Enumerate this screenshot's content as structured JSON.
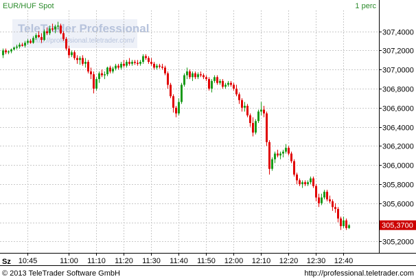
{
  "header": {
    "instrument": "EUR/HUF Spot",
    "interval": "1 perc"
  },
  "watermark": {
    "brand": "TeleTrader Professional",
    "url": "http://professional.teletrader.com/"
  },
  "footer": {
    "copyright": "© 2013 TeleTrader Software GmbH",
    "url": "http://professional.teletrader.com"
  },
  "axis_corner_label": "Sz",
  "last_price_label": "305,3700",
  "colors": {
    "up": "#1a9a1a",
    "down": "#e00000",
    "grid": "#c8c8c8",
    "last_price_bg": "#cc0000",
    "header_text": "#2a8a2a"
  },
  "chart_data": {
    "type": "candlestick",
    "title": "EUR/HUF Spot",
    "interval": "1 perc",
    "ylim": [
      305.08,
      307.62
    ],
    "yticks": [
      305.2,
      305.4,
      305.6,
      305.8,
      306.0,
      306.2,
      306.4,
      306.6,
      306.8,
      307.0,
      307.2,
      307.4
    ],
    "ytick_labels": [
      "305,2000",
      "305,4000",
      "305,6000",
      "305,8000",
      "306,0000",
      "306,2000",
      "306,4000",
      "306,6000",
      "306,8000",
      "307,0000",
      "307,2000",
      "307,4000"
    ],
    "xlim": [
      "10:36",
      "12:52"
    ],
    "xticks": [
      "10:45",
      "11:00",
      "11:10",
      "11:20",
      "11:30",
      "11:40",
      "11:50",
      "12:00",
      "12:10",
      "12:20",
      "12:30",
      "12:40"
    ],
    "grid": true,
    "last_price": 305.37,
    "candles": [
      {
        "t": "10:36",
        "o": 307.15,
        "h": 307.22,
        "l": 307.12,
        "c": 307.2
      },
      {
        "t": "10:37",
        "o": 307.2,
        "h": 307.22,
        "l": 307.16,
        "c": 307.18
      },
      {
        "t": "10:38",
        "o": 307.18,
        "h": 307.2,
        "l": 307.16,
        "c": 307.19
      },
      {
        "t": "10:39",
        "o": 307.19,
        "h": 307.22,
        "l": 307.17,
        "c": 307.21
      },
      {
        "t": "10:40",
        "o": 307.21,
        "h": 307.24,
        "l": 307.2,
        "c": 307.23
      },
      {
        "t": "10:41",
        "o": 307.23,
        "h": 307.26,
        "l": 307.21,
        "c": 307.24
      },
      {
        "t": "10:42",
        "o": 307.24,
        "h": 307.28,
        "l": 307.22,
        "c": 307.26
      },
      {
        "t": "10:43",
        "o": 307.26,
        "h": 307.28,
        "l": 307.24,
        "c": 307.25
      },
      {
        "t": "10:44",
        "o": 307.25,
        "h": 307.3,
        "l": 307.23,
        "c": 307.28
      },
      {
        "t": "10:45",
        "o": 307.28,
        "h": 307.32,
        "l": 307.26,
        "c": 307.3
      },
      {
        "t": "10:46",
        "o": 307.3,
        "h": 307.32,
        "l": 307.27,
        "c": 307.28
      },
      {
        "t": "10:47",
        "o": 307.28,
        "h": 307.35,
        "l": 307.27,
        "c": 307.33
      },
      {
        "t": "10:48",
        "o": 307.33,
        "h": 307.38,
        "l": 307.31,
        "c": 307.36
      },
      {
        "t": "10:49",
        "o": 307.36,
        "h": 307.4,
        "l": 307.33,
        "c": 307.34
      },
      {
        "t": "10:50",
        "o": 307.34,
        "h": 307.38,
        "l": 307.28,
        "c": 307.31
      },
      {
        "t": "10:51",
        "o": 307.31,
        "h": 307.42,
        "l": 307.3,
        "c": 307.4
      },
      {
        "t": "10:52",
        "o": 307.4,
        "h": 307.44,
        "l": 307.36,
        "c": 307.38
      },
      {
        "t": "10:53",
        "o": 307.38,
        "h": 307.46,
        "l": 307.36,
        "c": 307.43
      },
      {
        "t": "10:54",
        "o": 307.43,
        "h": 307.48,
        "l": 307.4,
        "c": 307.42
      },
      {
        "t": "10:55",
        "o": 307.42,
        "h": 307.47,
        "l": 307.38,
        "c": 307.45
      },
      {
        "t": "10:56",
        "o": 307.45,
        "h": 307.5,
        "l": 307.42,
        "c": 307.46
      },
      {
        "t": "10:57",
        "o": 307.46,
        "h": 307.48,
        "l": 307.37,
        "c": 307.38
      },
      {
        "t": "10:58",
        "o": 307.38,
        "h": 307.4,
        "l": 307.3,
        "c": 307.32
      },
      {
        "t": "10:59",
        "o": 307.32,
        "h": 307.34,
        "l": 307.2,
        "c": 307.22
      },
      {
        "t": "11:00",
        "o": 307.22,
        "h": 307.25,
        "l": 307.12,
        "c": 307.15
      },
      {
        "t": "11:01",
        "o": 307.15,
        "h": 307.2,
        "l": 307.13,
        "c": 307.18
      },
      {
        "t": "11:02",
        "o": 307.18,
        "h": 307.2,
        "l": 307.1,
        "c": 307.12
      },
      {
        "t": "11:03",
        "o": 307.12,
        "h": 307.15,
        "l": 307.06,
        "c": 307.1
      },
      {
        "t": "11:04",
        "o": 307.1,
        "h": 307.14,
        "l": 307.05,
        "c": 307.12
      },
      {
        "t": "11:05",
        "o": 307.12,
        "h": 307.15,
        "l": 307.04,
        "c": 307.06
      },
      {
        "t": "11:06",
        "o": 307.06,
        "h": 307.12,
        "l": 307.02,
        "c": 307.08
      },
      {
        "t": "11:07",
        "o": 307.08,
        "h": 307.1,
        "l": 306.96,
        "c": 306.98
      },
      {
        "t": "11:08",
        "o": 306.98,
        "h": 307.02,
        "l": 306.9,
        "c": 306.95
      },
      {
        "t": "11:09",
        "o": 306.95,
        "h": 306.98,
        "l": 306.75,
        "c": 306.8
      },
      {
        "t": "11:10",
        "o": 306.8,
        "h": 306.92,
        "l": 306.78,
        "c": 306.9
      },
      {
        "t": "11:11",
        "o": 306.9,
        "h": 306.98,
        "l": 306.86,
        "c": 306.96
      },
      {
        "t": "11:12",
        "o": 306.96,
        "h": 307.0,
        "l": 306.92,
        "c": 306.94
      },
      {
        "t": "11:13",
        "o": 306.94,
        "h": 306.98,
        "l": 306.9,
        "c": 306.95
      },
      {
        "t": "11:14",
        "o": 306.95,
        "h": 307.03,
        "l": 306.93,
        "c": 307.02
      },
      {
        "t": "11:15",
        "o": 307.02,
        "h": 307.04,
        "l": 306.96,
        "c": 306.98
      },
      {
        "t": "11:16",
        "o": 306.98,
        "h": 307.03,
        "l": 306.96,
        "c": 307.01
      },
      {
        "t": "11:17",
        "o": 307.01,
        "h": 307.06,
        "l": 306.99,
        "c": 307.04
      },
      {
        "t": "11:18",
        "o": 307.04,
        "h": 307.06,
        "l": 307.0,
        "c": 307.02
      },
      {
        "t": "11:19",
        "o": 307.02,
        "h": 307.08,
        "l": 307.0,
        "c": 307.06
      },
      {
        "t": "11:20",
        "o": 307.06,
        "h": 307.1,
        "l": 307.02,
        "c": 307.04
      },
      {
        "t": "11:21",
        "o": 307.04,
        "h": 307.1,
        "l": 307.02,
        "c": 307.08
      },
      {
        "t": "11:22",
        "o": 307.08,
        "h": 307.12,
        "l": 307.04,
        "c": 307.06
      },
      {
        "t": "11:23",
        "o": 307.06,
        "h": 307.1,
        "l": 307.04,
        "c": 307.08
      },
      {
        "t": "11:24",
        "o": 307.08,
        "h": 307.1,
        "l": 307.05,
        "c": 307.07
      },
      {
        "t": "11:25",
        "o": 307.07,
        "h": 307.1,
        "l": 307.04,
        "c": 307.06
      },
      {
        "t": "11:26",
        "o": 307.06,
        "h": 307.1,
        "l": 307.04,
        "c": 307.08
      },
      {
        "t": "11:27",
        "o": 307.08,
        "h": 307.16,
        "l": 307.06,
        "c": 307.14
      },
      {
        "t": "11:28",
        "o": 307.14,
        "h": 307.16,
        "l": 307.1,
        "c": 307.12
      },
      {
        "t": "11:29",
        "o": 307.12,
        "h": 307.14,
        "l": 307.06,
        "c": 307.08
      },
      {
        "t": "11:30",
        "o": 307.08,
        "h": 307.12,
        "l": 307.04,
        "c": 307.06
      },
      {
        "t": "11:31",
        "o": 307.06,
        "h": 307.08,
        "l": 307.0,
        "c": 307.02
      },
      {
        "t": "11:32",
        "o": 307.02,
        "h": 307.06,
        "l": 307.0,
        "c": 307.04
      },
      {
        "t": "11:33",
        "o": 307.04,
        "h": 307.06,
        "l": 307.01,
        "c": 307.03
      },
      {
        "t": "11:34",
        "o": 307.03,
        "h": 307.06,
        "l": 307.0,
        "c": 307.02
      },
      {
        "t": "11:35",
        "o": 307.02,
        "h": 307.04,
        "l": 306.94,
        "c": 306.96
      },
      {
        "t": "11:36",
        "o": 306.96,
        "h": 306.98,
        "l": 306.8,
        "c": 306.84
      },
      {
        "t": "11:37",
        "o": 306.84,
        "h": 306.86,
        "l": 306.7,
        "c": 306.72
      },
      {
        "t": "11:38",
        "o": 306.72,
        "h": 306.74,
        "l": 306.55,
        "c": 306.6
      },
      {
        "t": "11:39",
        "o": 306.6,
        "h": 306.62,
        "l": 306.5,
        "c": 306.54
      },
      {
        "t": "11:40",
        "o": 306.54,
        "h": 306.7,
        "l": 306.52,
        "c": 306.66
      },
      {
        "t": "11:41",
        "o": 306.66,
        "h": 306.86,
        "l": 306.64,
        "c": 306.84
      },
      {
        "t": "11:42",
        "o": 306.84,
        "h": 306.96,
        "l": 306.82,
        "c": 306.94
      },
      {
        "t": "11:43",
        "o": 306.94,
        "h": 307.02,
        "l": 306.9,
        "c": 306.98
      },
      {
        "t": "11:44",
        "o": 306.98,
        "h": 307.0,
        "l": 306.9,
        "c": 306.92
      },
      {
        "t": "11:45",
        "o": 306.92,
        "h": 306.98,
        "l": 306.88,
        "c": 306.96
      },
      {
        "t": "11:46",
        "o": 306.96,
        "h": 306.98,
        "l": 306.9,
        "c": 306.92
      },
      {
        "t": "11:47",
        "o": 306.92,
        "h": 306.97,
        "l": 306.9,
        "c": 306.95
      },
      {
        "t": "11:48",
        "o": 306.95,
        "h": 306.98,
        "l": 306.92,
        "c": 306.94
      },
      {
        "t": "11:49",
        "o": 306.94,
        "h": 306.96,
        "l": 306.9,
        "c": 306.92
      },
      {
        "t": "11:50",
        "o": 306.92,
        "h": 306.94,
        "l": 306.88,
        "c": 306.9
      },
      {
        "t": "11:51",
        "o": 306.9,
        "h": 306.92,
        "l": 306.78,
        "c": 306.8
      },
      {
        "t": "11:52",
        "o": 306.8,
        "h": 306.9,
        "l": 306.76,
        "c": 306.88
      },
      {
        "t": "11:53",
        "o": 306.88,
        "h": 306.94,
        "l": 306.86,
        "c": 306.92
      },
      {
        "t": "11:54",
        "o": 306.92,
        "h": 306.94,
        "l": 306.84,
        "c": 306.86
      },
      {
        "t": "11:55",
        "o": 306.86,
        "h": 306.9,
        "l": 306.84,
        "c": 306.88
      },
      {
        "t": "11:56",
        "o": 306.88,
        "h": 306.9,
        "l": 306.8,
        "c": 306.82
      },
      {
        "t": "11:57",
        "o": 306.82,
        "h": 306.86,
        "l": 306.8,
        "c": 306.84
      },
      {
        "t": "11:58",
        "o": 306.84,
        "h": 306.88,
        "l": 306.82,
        "c": 306.86
      },
      {
        "t": "11:59",
        "o": 306.86,
        "h": 306.88,
        "l": 306.82,
        "c": 306.84
      },
      {
        "t": "12:00",
        "o": 306.84,
        "h": 306.86,
        "l": 306.78,
        "c": 306.8
      },
      {
        "t": "12:01",
        "o": 306.8,
        "h": 306.84,
        "l": 306.72,
        "c": 306.74
      },
      {
        "t": "12:02",
        "o": 306.74,
        "h": 306.76,
        "l": 306.64,
        "c": 306.68
      },
      {
        "t": "12:03",
        "o": 306.68,
        "h": 306.7,
        "l": 306.56,
        "c": 306.6
      },
      {
        "t": "12:04",
        "o": 306.6,
        "h": 306.66,
        "l": 306.56,
        "c": 306.62
      },
      {
        "t": "12:05",
        "o": 306.62,
        "h": 306.64,
        "l": 306.5,
        "c": 306.52
      },
      {
        "t": "12:06",
        "o": 306.52,
        "h": 306.54,
        "l": 306.4,
        "c": 306.44
      },
      {
        "t": "12:07",
        "o": 306.44,
        "h": 306.5,
        "l": 306.3,
        "c": 306.34
      },
      {
        "t": "12:08",
        "o": 306.34,
        "h": 306.48,
        "l": 306.32,
        "c": 306.46
      },
      {
        "t": "12:09",
        "o": 306.46,
        "h": 306.58,
        "l": 306.44,
        "c": 306.56
      },
      {
        "t": "12:10",
        "o": 306.56,
        "h": 306.66,
        "l": 306.52,
        "c": 306.58
      },
      {
        "t": "12:11",
        "o": 306.58,
        "h": 306.62,
        "l": 306.5,
        "c": 306.54
      },
      {
        "t": "12:12",
        "o": 306.54,
        "h": 306.56,
        "l": 306.2,
        "c": 306.24
      },
      {
        "t": "12:13",
        "o": 306.24,
        "h": 306.26,
        "l": 305.9,
        "c": 305.96
      },
      {
        "t": "12:14",
        "o": 305.96,
        "h": 306.08,
        "l": 305.94,
        "c": 306.06
      },
      {
        "t": "12:15",
        "o": 306.06,
        "h": 306.14,
        "l": 306.02,
        "c": 306.12
      },
      {
        "t": "12:16",
        "o": 306.12,
        "h": 306.16,
        "l": 306.08,
        "c": 306.1
      },
      {
        "t": "12:17",
        "o": 306.1,
        "h": 306.14,
        "l": 306.06,
        "c": 306.12
      },
      {
        "t": "12:18",
        "o": 306.12,
        "h": 306.16,
        "l": 306.08,
        "c": 306.14
      },
      {
        "t": "12:19",
        "o": 306.14,
        "h": 306.22,
        "l": 306.12,
        "c": 306.18
      },
      {
        "t": "12:20",
        "o": 306.18,
        "h": 306.2,
        "l": 306.1,
        "c": 306.12
      },
      {
        "t": "12:21",
        "o": 306.12,
        "h": 306.14,
        "l": 306.02,
        "c": 306.04
      },
      {
        "t": "12:22",
        "o": 306.04,
        "h": 306.06,
        "l": 305.88,
        "c": 305.9
      },
      {
        "t": "12:23",
        "o": 305.9,
        "h": 305.92,
        "l": 305.8,
        "c": 305.84
      },
      {
        "t": "12:24",
        "o": 305.84,
        "h": 305.86,
        "l": 305.78,
        "c": 305.8
      },
      {
        "t": "12:25",
        "o": 305.8,
        "h": 305.84,
        "l": 305.76,
        "c": 305.82
      },
      {
        "t": "12:26",
        "o": 305.82,
        "h": 305.84,
        "l": 305.78,
        "c": 305.8
      },
      {
        "t": "12:27",
        "o": 305.8,
        "h": 305.84,
        "l": 305.78,
        "c": 305.82
      },
      {
        "t": "12:28",
        "o": 305.82,
        "h": 305.88,
        "l": 305.8,
        "c": 305.86
      },
      {
        "t": "12:29",
        "o": 305.86,
        "h": 305.88,
        "l": 305.76,
        "c": 305.78
      },
      {
        "t": "12:30",
        "o": 305.78,
        "h": 305.8,
        "l": 305.62,
        "c": 305.66
      },
      {
        "t": "12:31",
        "o": 305.66,
        "h": 305.7,
        "l": 305.56,
        "c": 305.6
      },
      {
        "t": "12:32",
        "o": 305.6,
        "h": 305.7,
        "l": 305.58,
        "c": 305.66
      },
      {
        "t": "12:33",
        "o": 305.66,
        "h": 305.74,
        "l": 305.64,
        "c": 305.72
      },
      {
        "t": "12:34",
        "o": 305.72,
        "h": 305.74,
        "l": 305.62,
        "c": 305.64
      },
      {
        "t": "12:35",
        "o": 305.64,
        "h": 305.68,
        "l": 305.6,
        "c": 305.62
      },
      {
        "t": "12:36",
        "o": 305.62,
        "h": 305.64,
        "l": 305.52,
        "c": 305.56
      },
      {
        "t": "12:37",
        "o": 305.56,
        "h": 305.6,
        "l": 305.5,
        "c": 305.54
      },
      {
        "t": "12:38",
        "o": 305.54,
        "h": 305.56,
        "l": 305.4,
        "c": 305.44
      },
      {
        "t": "12:39",
        "o": 305.44,
        "h": 305.46,
        "l": 305.32,
        "c": 305.36
      },
      {
        "t": "12:40",
        "o": 305.36,
        "h": 305.46,
        "l": 305.34,
        "c": 305.42
      },
      {
        "t": "12:41",
        "o": 305.42,
        "h": 305.44,
        "l": 305.32,
        "c": 305.34
      },
      {
        "t": "12:42",
        "o": 305.34,
        "h": 305.38,
        "l": 305.33,
        "c": 305.37
      }
    ]
  }
}
